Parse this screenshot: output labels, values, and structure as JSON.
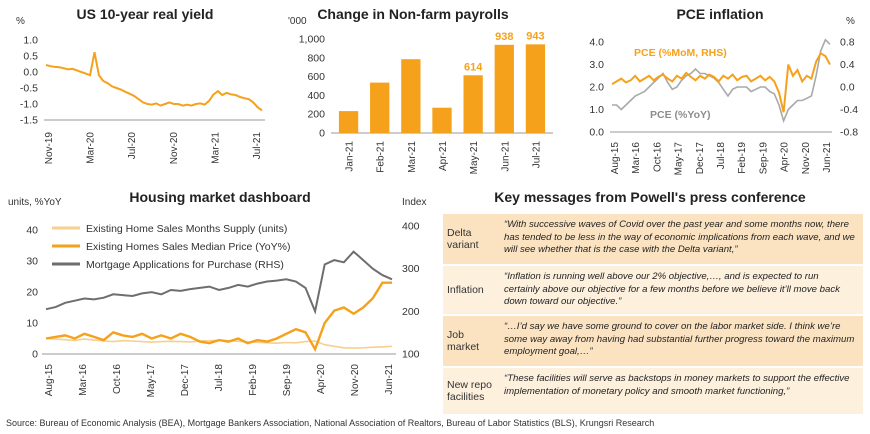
{
  "colors": {
    "orange": "#f5a11c",
    "grey": "#6e6e6e",
    "lightgrey": "#a9a9a9",
    "paleorange": "#f7cf8f",
    "axis": "#999999",
    "text": "#333333"
  },
  "source": "Source: Bureau of Economic Analysis (BEA), Mortgage Bankers Association, National Association of Realtors, Bureau of Labor Statistics (BLS), Krungsri Research",
  "chart_data": [
    {
      "id": "real-yield",
      "type": "line",
      "title": "US 10-year real yield",
      "ylabel": "%",
      "ylim": [
        -1.5,
        1.0
      ],
      "yticks": [
        "1.0",
        "0.5",
        "0.0",
        "-0.5",
        "-1.0",
        "-1.5"
      ],
      "xticks": [
        "Nov-19",
        "Mar-20",
        "Jul-20",
        "Nov-20",
        "Mar-21",
        "Jul-21"
      ],
      "series": [
        {
          "values": [
            0.22,
            0.18,
            0.16,
            0.15,
            0.12,
            0.08,
            0.1,
            0.05,
            0.0,
            -0.05,
            -0.1,
            0.62,
            -0.1,
            -0.28,
            -0.35,
            -0.45,
            -0.5,
            -0.55,
            -0.62,
            -0.68,
            -0.75,
            -0.85,
            -0.95,
            -1.0,
            -1.02,
            -0.98,
            -1.05,
            -1.0,
            -0.95,
            -1.0,
            -1.0,
            -1.05,
            -1.02,
            -1.05,
            -1.0,
            -0.98,
            -1.02,
            -0.9,
            -0.7,
            -0.6,
            -0.72,
            -0.65,
            -0.7,
            -0.72,
            -0.78,
            -0.82,
            -0.85,
            -0.95,
            -1.1,
            -1.2
          ]
        }
      ]
    },
    {
      "id": "payrolls",
      "type": "bar",
      "title": "Change in Non-farm payrolls",
      "ylabel": "'000",
      "ylim": [
        0,
        1000
      ],
      "yticks": [
        "1,000",
        "800",
        "600",
        "400",
        "200",
        "0"
      ],
      "categories": [
        "Jan-21",
        "Feb-21",
        "Mar-21",
        "Apr-21",
        "May-21",
        "Jun-21",
        "Jul-21"
      ],
      "values": [
        233,
        536,
        785,
        269,
        614,
        938,
        943
      ],
      "value_labels": [
        "",
        "",
        "",
        "",
        "614",
        "938",
        "943"
      ]
    },
    {
      "id": "pce",
      "type": "line",
      "title": "PCE inflation",
      "ylabel_left": "",
      "ylabel_right": "%",
      "ylim_left": [
        0.0,
        4.0
      ],
      "ylim_right": [
        -0.8,
        0.8
      ],
      "yticks_left": [
        "4.0",
        "3.0",
        "2.0",
        "1.0",
        "0.0"
      ],
      "yticks_right": [
        "0.8",
        "0.4",
        "0.0",
        "-0.4",
        "-0.8"
      ],
      "xticks": [
        "Aug-15",
        "Mar-16",
        "Oct-16",
        "May-17",
        "Dec-17",
        "Jul-18",
        "Feb-19",
        "Sep-19",
        "Apr-20",
        "Nov-20",
        "Jun-21"
      ],
      "series": [
        {
          "name": "PCE (%MoM, RHS)",
          "axis": "right",
          "values": [
            0.05,
            0.1,
            0.15,
            0.08,
            0.12,
            0.2,
            0.1,
            0.15,
            0.2,
            0.12,
            0.18,
            0.22,
            0.15,
            0.1,
            0.2,
            0.15,
            0.25,
            0.18,
            0.12,
            0.2,
            0.15,
            0.22,
            0.18,
            0.1,
            0.2,
            0.15,
            0.22,
            0.12,
            0.18,
            0.2,
            0.1,
            0.15,
            0.2,
            0.12,
            0.18,
            0.1,
            -0.1,
            -0.45,
            0.4,
            0.2,
            0.3,
            0.1,
            0.2,
            0.15,
            0.45,
            0.6,
            0.55,
            0.4
          ]
        },
        {
          "name": "PCE (%YoY)",
          "axis": "left",
          "values": [
            1.2,
            1.2,
            1.0,
            1.2,
            1.4,
            1.6,
            1.7,
            1.8,
            2.0,
            2.2,
            2.4,
            2.6,
            2.2,
            1.9,
            2.0,
            2.3,
            2.5,
            2.6,
            2.8,
            2.6,
            2.6,
            2.5,
            2.4,
            2.2,
            1.9,
            1.6,
            1.9,
            2.0,
            2.0,
            2.0,
            1.8,
            1.9,
            2.0,
            2.0,
            1.8,
            1.7,
            1.2,
            0.5,
            1.0,
            1.2,
            1.4,
            1.4,
            1.5,
            1.6,
            2.5,
            3.6,
            4.1,
            3.9
          ]
        }
      ]
    },
    {
      "id": "housing",
      "type": "line",
      "title": "Housing market dashboard",
      "ylabel_left": "units, %YoY",
      "ylabel_right": "Index",
      "ylim_left": [
        0,
        40
      ],
      "ylim_right": [
        100,
        400
      ],
      "yticks_left": [
        "40",
        "30",
        "20",
        "10",
        "0"
      ],
      "yticks_right": [
        "400",
        "300",
        "200",
        "100"
      ],
      "xticks": [
        "Aug-15",
        "Mar-16",
        "Oct-16",
        "May-17",
        "Dec-17",
        "Jul-18",
        "Feb-19",
        "Sep-19",
        "Apr-20",
        "Nov-20",
        "Jun-21"
      ],
      "series": [
        {
          "name": "Existing Home Sales Months Supply (units)",
          "axis": "left",
          "values": [
            5.0,
            4.8,
            4.6,
            4.4,
            4.8,
            4.5,
            4.2,
            4.0,
            4.3,
            4.2,
            4.0,
            3.8,
            4.0,
            4.1,
            4.0,
            3.9,
            4.2,
            4.3,
            4.4,
            4.3,
            4.1,
            3.9,
            3.8,
            3.6,
            3.5,
            3.7,
            3.6,
            4.0,
            4.2,
            3.0,
            2.5,
            2.0,
            1.9,
            2.0,
            2.2,
            2.3,
            2.5
          ]
        },
        {
          "name": "Existing Homes Sales Median Price (YoY%)",
          "axis": "left",
          "values": [
            5.0,
            5.5,
            6.0,
            5.0,
            6.5,
            5.5,
            4.5,
            7.0,
            6.0,
            5.5,
            6.5,
            5.0,
            6.0,
            5.0,
            6.5,
            5.5,
            4.0,
            3.5,
            4.5,
            4.0,
            5.0,
            3.5,
            4.5,
            4.0,
            5.0,
            6.5,
            8.0,
            7.0,
            1.5,
            10.0,
            14.0,
            15.0,
            13.0,
            15.0,
            18.0,
            23.0,
            23.0
          ]
        },
        {
          "name": "Mortgage Applications for Purchase (RHS)",
          "axis": "right",
          "values": [
            205,
            210,
            220,
            225,
            230,
            228,
            232,
            240,
            238,
            236,
            242,
            245,
            240,
            250,
            248,
            252,
            255,
            258,
            250,
            255,
            262,
            258,
            265,
            270,
            272,
            275,
            270,
            255,
            200,
            310,
            320,
            315,
            340,
            320,
            300,
            285,
            275
          ]
        }
      ]
    }
  ],
  "messages": {
    "title": "Key messages from Powell's press conference",
    "rows": [
      {
        "topic": "Delta variant",
        "text": "“With successive waves of Covid over the past year and some months now, there has tended to be less in the way of economic implications from each wave, and we will see whether that is the case with the Delta variant,”"
      },
      {
        "topic": "Inflation",
        "text": "“Inflation is running well above our 2% objective,…, and is expected to run certainly above our objective for a few months before we believe it’ll move back down toward our objective.”"
      },
      {
        "topic": "Job market",
        "text": "“…I’d say we have some ground to cover on the labor market side. I think we’re some way away from having had substantial further progress toward the maximum employment goal,…”"
      },
      {
        "topic": "New repo facilities",
        "text": "“These facilities will serve as backstops in money markets to support the effective implementation of monetary policy and smooth market functioning,”"
      }
    ]
  }
}
